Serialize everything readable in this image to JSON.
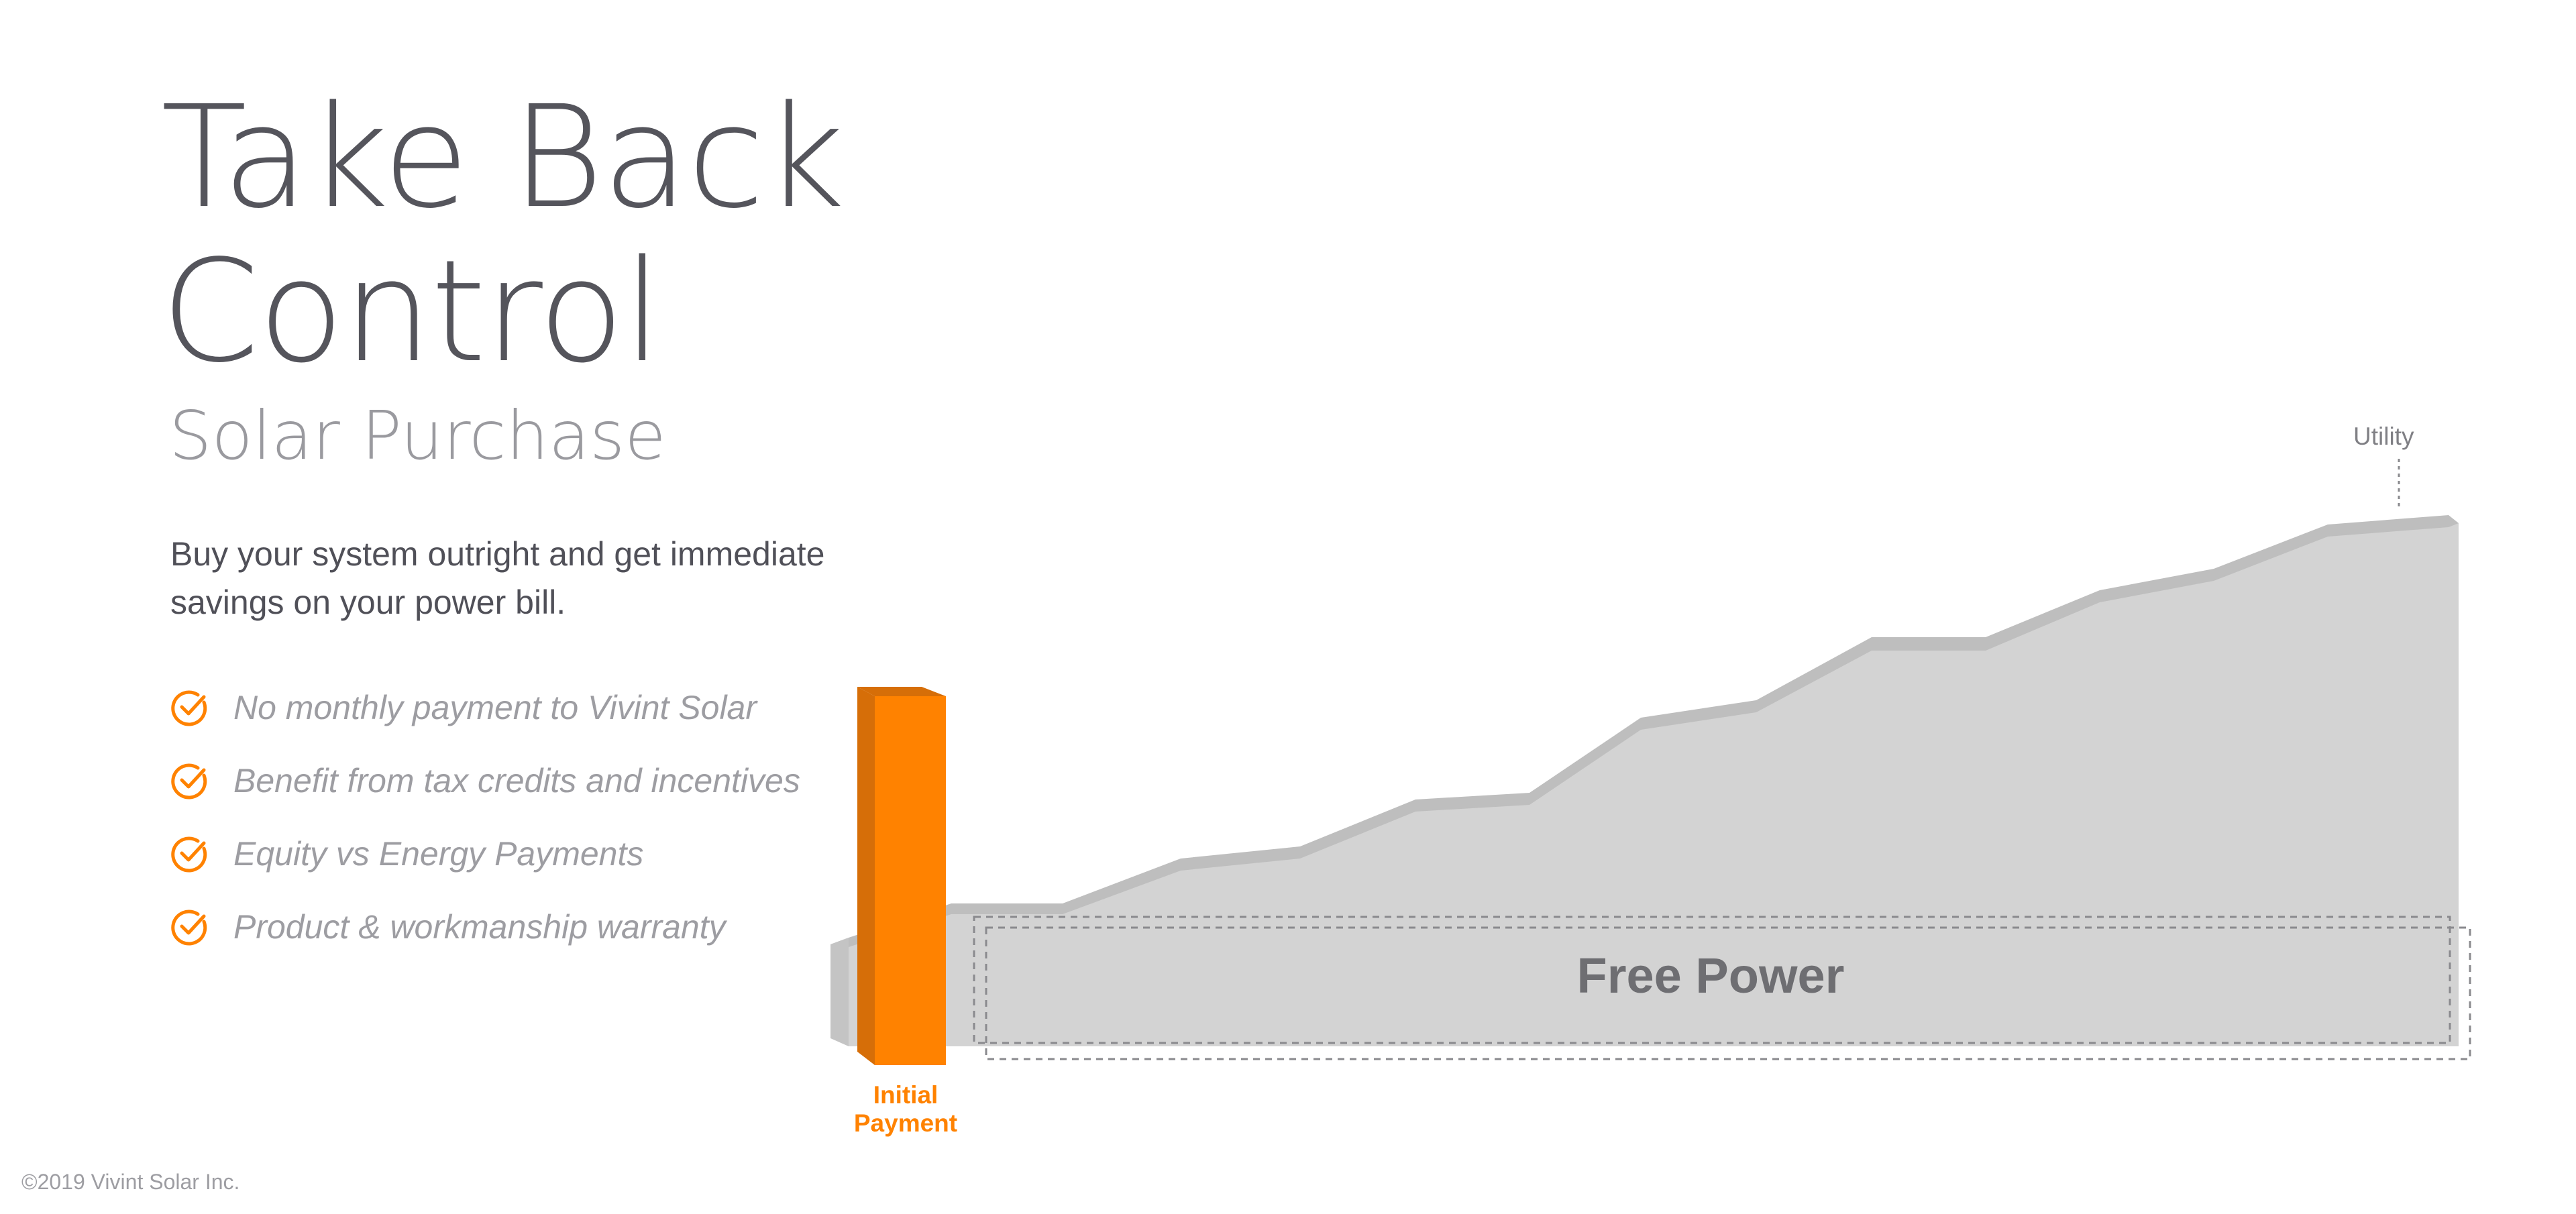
{
  "title": "Take Back Control",
  "subtitle": "Solar Purchase",
  "description": "Buy your system outright and get immediate savings on your power bill.",
  "benefits": [
    {
      "icon": "check-circle-icon",
      "text": "No monthly payment to Vivint Solar"
    },
    {
      "icon": "check-circle-icon",
      "text": "Benefit from tax credits and incentives"
    },
    {
      "icon": "check-circle-icon",
      "text": "Equity vs Energy Payments"
    },
    {
      "icon": "check-circle-icon",
      "text": "Product & workmanship warranty"
    }
  ],
  "chart": {
    "initial_payment_label": "Initial Payment",
    "utility_label": "Utility",
    "free_power_label": "Free Power"
  },
  "colors": {
    "accent": "#ff8200",
    "accent_dark": "#d66e08",
    "area": "#d3d3d3",
    "area_ridge": "#bebebe",
    "title": "#55555c",
    "muted": "#9d9da2"
  },
  "copyright": "©2019 Vivint Solar Inc."
}
